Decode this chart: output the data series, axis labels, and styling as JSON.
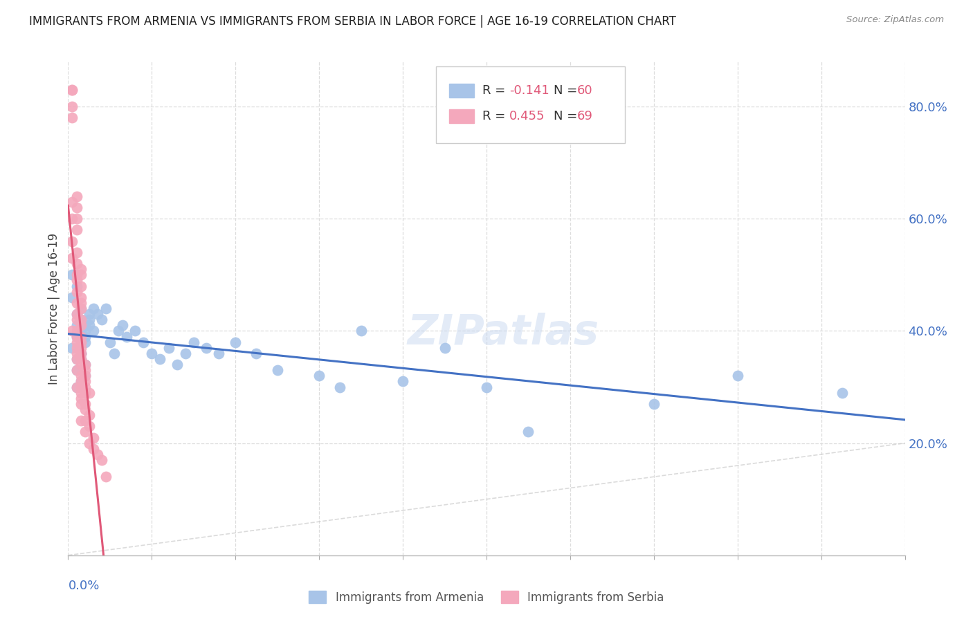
{
  "title": "IMMIGRANTS FROM ARMENIA VS IMMIGRANTS FROM SERBIA IN LABOR FORCE | AGE 16-19 CORRELATION CHART",
  "source": "Source: ZipAtlas.com",
  "ylabel": "In Labor Force | Age 16-19",
  "ylabel_right_ticks": [
    "20.0%",
    "40.0%",
    "60.0%",
    "80.0%"
  ],
  "ylabel_right_vals": [
    0.2,
    0.4,
    0.6,
    0.8
  ],
  "xlim": [
    0.0,
    0.2
  ],
  "ylim": [
    0.0,
    0.88
  ],
  "color_armenia": "#a8c4e8",
  "color_serbia": "#f4a8bc",
  "color_armenia_line": "#4472c4",
  "color_serbia_line": "#e05878",
  "color_diag": "#cccccc",
  "armenia_x": [
    0.001,
    0.002,
    0.001,
    0.003,
    0.002,
    0.003,
    0.002,
    0.003,
    0.004,
    0.002,
    0.003,
    0.001,
    0.004,
    0.003,
    0.002,
    0.004,
    0.003,
    0.002,
    0.004,
    0.003,
    0.005,
    0.004,
    0.003,
    0.002,
    0.005,
    0.004,
    0.006,
    0.005,
    0.007,
    0.006,
    0.008,
    0.009,
    0.01,
    0.011,
    0.012,
    0.013,
    0.014,
    0.016,
    0.018,
    0.02,
    0.022,
    0.024,
    0.026,
    0.028,
    0.03,
    0.033,
    0.036,
    0.04,
    0.045,
    0.05,
    0.06,
    0.065,
    0.07,
    0.08,
    0.09,
    0.1,
    0.11,
    0.14,
    0.16,
    0.185
  ],
  "armenia_y": [
    0.5,
    0.48,
    0.46,
    0.44,
    0.43,
    0.42,
    0.41,
    0.4,
    0.41,
    0.39,
    0.38,
    0.37,
    0.39,
    0.36,
    0.35,
    0.34,
    0.36,
    0.33,
    0.32,
    0.31,
    0.43,
    0.38,
    0.35,
    0.3,
    0.42,
    0.4,
    0.44,
    0.41,
    0.43,
    0.4,
    0.42,
    0.44,
    0.38,
    0.36,
    0.4,
    0.41,
    0.39,
    0.4,
    0.38,
    0.36,
    0.35,
    0.37,
    0.34,
    0.36,
    0.38,
    0.37,
    0.36,
    0.38,
    0.36,
    0.33,
    0.32,
    0.3,
    0.4,
    0.31,
    0.37,
    0.3,
    0.22,
    0.27,
    0.32,
    0.29
  ],
  "serbia_x": [
    0.001,
    0.001,
    0.001,
    0.001,
    0.002,
    0.001,
    0.002,
    0.001,
    0.002,
    0.002,
    0.001,
    0.002,
    0.001,
    0.002,
    0.003,
    0.002,
    0.003,
    0.002,
    0.003,
    0.002,
    0.003,
    0.002,
    0.003,
    0.003,
    0.002,
    0.003,
    0.002,
    0.003,
    0.002,
    0.001,
    0.003,
    0.002,
    0.003,
    0.002,
    0.003,
    0.002,
    0.003,
    0.002,
    0.003,
    0.002,
    0.004,
    0.003,
    0.002,
    0.004,
    0.003,
    0.004,
    0.003,
    0.004,
    0.003,
    0.002,
    0.004,
    0.003,
    0.005,
    0.004,
    0.003,
    0.004,
    0.003,
    0.004,
    0.005,
    0.004,
    0.003,
    0.005,
    0.004,
    0.006,
    0.005,
    0.006,
    0.007,
    0.008,
    0.009
  ],
  "serbia_y": [
    0.83,
    0.83,
    0.8,
    0.78,
    0.64,
    0.63,
    0.62,
    0.6,
    0.6,
    0.58,
    0.56,
    0.54,
    0.53,
    0.52,
    0.51,
    0.5,
    0.5,
    0.49,
    0.48,
    0.47,
    0.46,
    0.45,
    0.45,
    0.44,
    0.43,
    0.42,
    0.42,
    0.41,
    0.4,
    0.4,
    0.39,
    0.39,
    0.38,
    0.38,
    0.37,
    0.37,
    0.36,
    0.36,
    0.35,
    0.35,
    0.34,
    0.34,
    0.33,
    0.33,
    0.32,
    0.32,
    0.31,
    0.31,
    0.3,
    0.3,
    0.3,
    0.29,
    0.29,
    0.29,
    0.28,
    0.27,
    0.27,
    0.26,
    0.25,
    0.24,
    0.24,
    0.23,
    0.22,
    0.21,
    0.2,
    0.19,
    0.18,
    0.17,
    0.14
  ]
}
